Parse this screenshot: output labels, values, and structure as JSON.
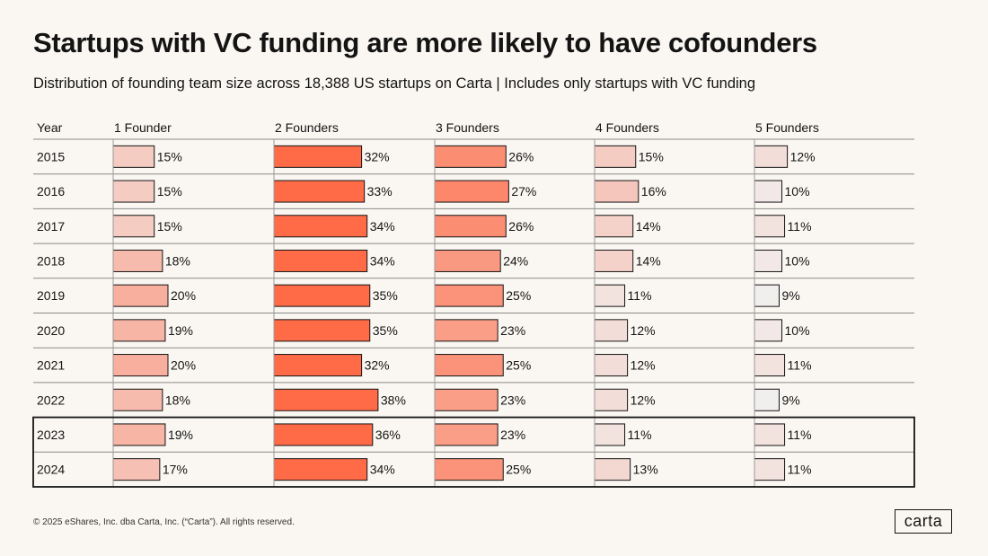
{
  "title": "Startups with VC funding are more likely to have cofounders",
  "subtitle": "Distribution of founding team size across 18,388 US startups on Carta | Includes only startups with VC funding",
  "footer": "© 2025 eShares, Inc. dba Carta, Inc. (“Carta”). All rights reserved.",
  "logo": "carta",
  "colors": {
    "background": "#faf7f2",
    "bar_scale_low": "#f1eeee",
    "bar_scale_high": "#ff6b47",
    "border": "#141414"
  },
  "chart_data": {
    "type": "table",
    "row_header": "Year",
    "categories": [
      "2015",
      "2016",
      "2017",
      "2018",
      "2019",
      "2020",
      "2021",
      "2022",
      "2023",
      "2024"
    ],
    "series": [
      {
        "name": "1 Founder",
        "values": [
          15,
          15,
          15,
          18,
          20,
          19,
          20,
          18,
          19,
          17
        ]
      },
      {
        "name": "2 Founders",
        "values": [
          32,
          33,
          34,
          34,
          35,
          35,
          32,
          38,
          36,
          34
        ]
      },
      {
        "name": "3 Founders",
        "values": [
          26,
          27,
          26,
          24,
          25,
          23,
          25,
          23,
          23,
          25
        ]
      },
      {
        "name": "4 Founders",
        "values": [
          15,
          16,
          14,
          14,
          11,
          12,
          12,
          12,
          11,
          13
        ]
      },
      {
        "name": "5 Founders",
        "values": [
          12,
          10,
          11,
          10,
          9,
          10,
          11,
          9,
          11,
          11
        ]
      }
    ],
    "value_suffix": "%",
    "highlighted_rows": [
      "2023",
      "2024"
    ]
  }
}
